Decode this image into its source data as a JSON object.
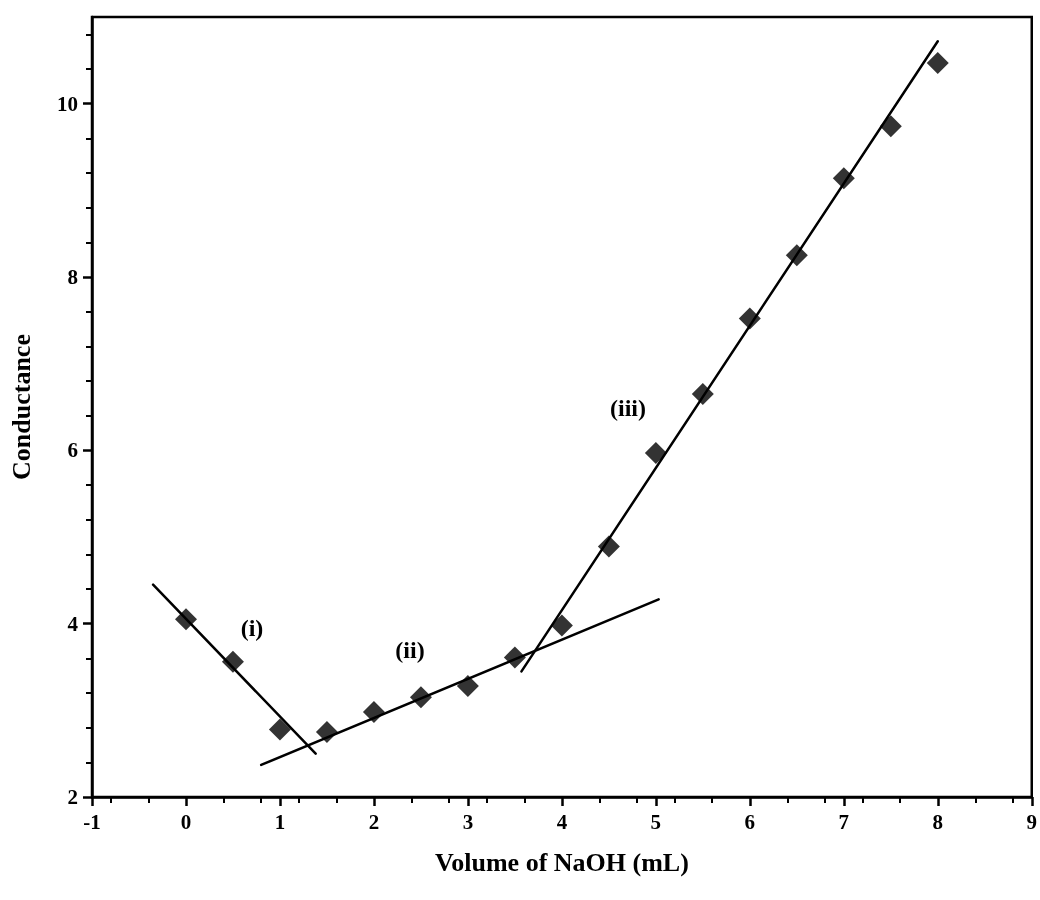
{
  "chart_data": {
    "type": "scatter",
    "xlabel": "Volume of NaOH (mL)",
    "ylabel": "Conductance",
    "x": [
      0,
      0.5,
      1,
      1.5,
      2,
      2.5,
      3,
      3.5,
      4,
      4.5,
      5,
      5.5,
      6,
      6.5,
      7,
      7.5,
      8
    ],
    "series": [
      {
        "color": "#000000",
        "marker": "diamond",
        "values": [
          4.05,
          3.56,
          2.78,
          2.75,
          2.98,
          3.15,
          3.28,
          3.61,
          3.98,
          4.89,
          5.97,
          6.65,
          7.52,
          8.25,
          9.14,
          9.74,
          10.47
        ]
      },
      {
        "type": "line",
        "color": "#000000",
        "marker": "none",
        "line_style": "solid",
        "x": [
          -0.35,
          1.38
        ],
        "values": [
          4.45,
          2.5
        ]
      },
      {
        "type": "line",
        "color": "#000000",
        "marker": "none",
        "line_style": "solid",
        "x": [
          0.8,
          5.03
        ],
        "values": [
          2.37,
          4.28
        ]
      },
      {
        "type": "line",
        "color": "#000000",
        "marker": "none",
        "line_style": "solid",
        "x": [
          3.57,
          8.0
        ],
        "values": [
          3.45,
          10.72
        ]
      }
    ],
    "annotations": [
      "(i)",
      "(ii)",
      "(iii)"
    ],
    "xlim": [
      -1,
      9
    ],
    "xticks": [
      -1,
      0,
      1,
      2,
      3,
      4,
      5,
      6,
      7,
      8,
      9
    ],
    "ylim": [
      2,
      11
    ],
    "yticks": [
      2,
      4,
      6,
      8,
      10
    ],
    "grid": false
  }
}
